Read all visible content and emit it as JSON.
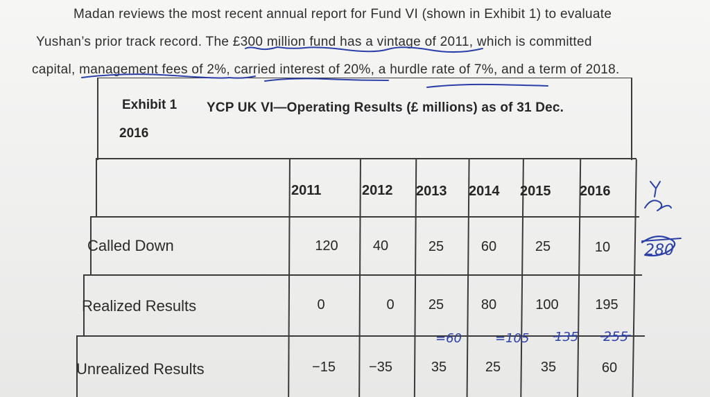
{
  "paragraph": {
    "line1": "Madan reviews the most recent annual report for Fund VI (shown in Exhibit 1) to evaluate",
    "line2": "Yushan’s prior track record. The £300 million fund has a vintage of 2011, which is committed",
    "line3": "capital, management fees of 2%, carried interest of 20%, a hurdle rate of 7%, and a term of 2018."
  },
  "exhibit": {
    "number": "Exhibit 1",
    "title": "YCP UK VI—Operating Results (£ millions) as of 31 Dec.",
    "title_year": "2016"
  },
  "table": {
    "years": [
      "2011",
      "2012",
      "2013",
      "2014",
      "2015",
      "2016"
    ],
    "rows": [
      {
        "label": "Called Down",
        "values": [
          "120",
          "40",
          "25",
          "60",
          "25",
          "10"
        ]
      },
      {
        "label": "Realized Results",
        "values": [
          "0",
          "0",
          "25",
          "80",
          "100",
          "195"
        ]
      },
      {
        "label": "Unrealized Results",
        "values": [
          "−15",
          "−35",
          "35",
          "25",
          "35",
          "60"
        ]
      }
    ]
  },
  "handwriting": {
    "notes": [
      "=60",
      "=105",
      "135",
      "255"
    ],
    "margin_note": "280",
    "ink_color": "#2b3fa8"
  }
}
